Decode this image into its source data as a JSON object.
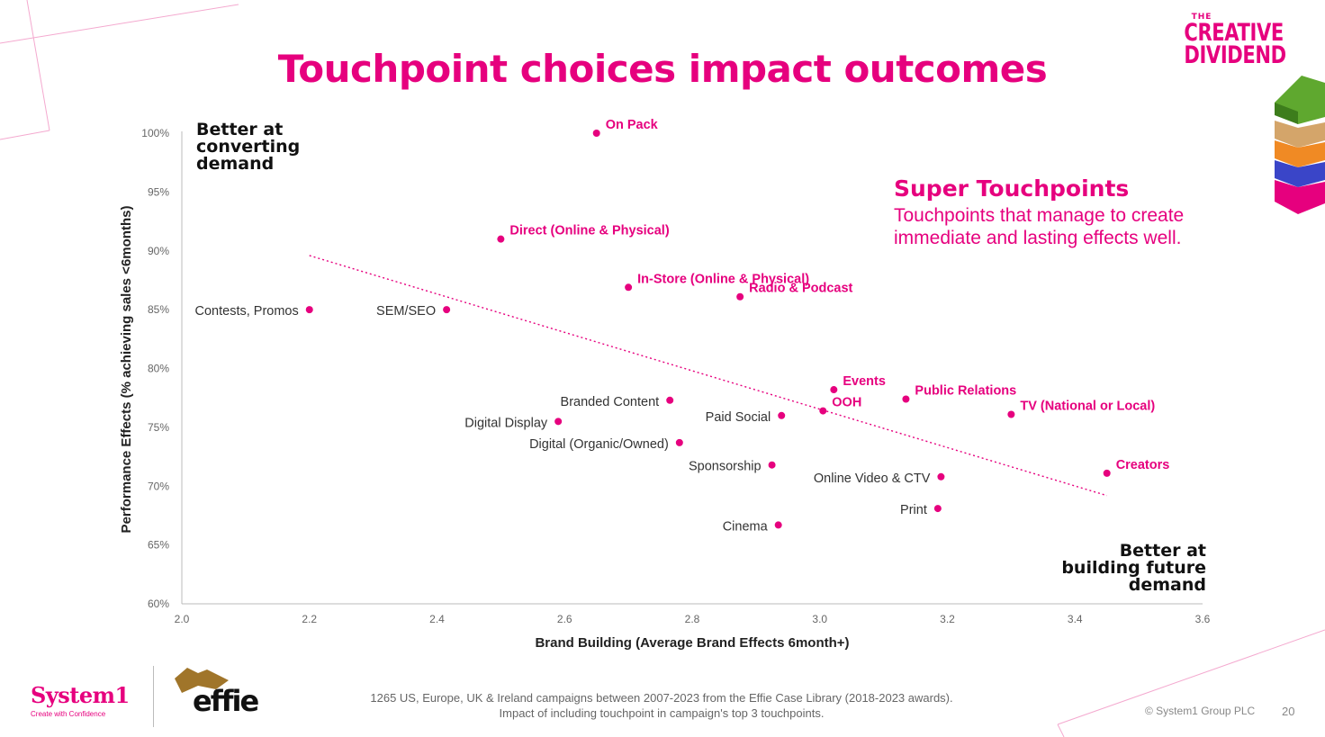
{
  "title": "Touchpoint choices impact outcomes",
  "brand": {
    "the": "THE",
    "line1": "CREATIVE",
    "line2": "DIVIDEND"
  },
  "super_touchpoints": {
    "title": "Super Touchpoints",
    "description": "Touchpoints that manage to create immediate and lasting effects well."
  },
  "corner_top_left": {
    "line1": "Better at",
    "line2": "converting",
    "line3": "demand"
  },
  "corner_bottom_right": {
    "line1": "Better at",
    "line2": "building future",
    "line3": "demand"
  },
  "footer": {
    "system1": "System1",
    "tagline": "Create with Confidence",
    "effie": "effie",
    "source_line1": "1265 US, Europe, UK & Ireland campaigns between 2007-2023 from the Effie Case Library (2018-2023 awards).",
    "source_line2": "Impact of including touchpoint in campaign's top 3 touchpoints.",
    "copyright": "© System1 Group PLC",
    "page": "20"
  },
  "colors": {
    "accent": "#e6007e",
    "text": "#222222"
  },
  "chart_data": {
    "type": "scatter",
    "xlabel": "Brand Building (Average Brand Effects 6month+)",
    "ylabel": "Performance Effects (% achieving sales <6months)",
    "xlim": [
      2.0,
      3.6
    ],
    "ylim": [
      60,
      100
    ],
    "xticks": [
      "2.0",
      "2.2",
      "2.4",
      "2.6",
      "2.8",
      "3.0",
      "3.2",
      "3.4",
      "3.6"
    ],
    "yticks": [
      "60%",
      "65%",
      "70%",
      "75%",
      "80%",
      "85%",
      "90%",
      "95%",
      "100%"
    ],
    "trendline": {
      "x": [
        2.2,
        3.45
      ],
      "y": [
        89.6,
        69.2
      ]
    },
    "points": [
      {
        "label": "On Pack",
        "x": 2.65,
        "y": 100,
        "highlight": true,
        "pos": "right"
      },
      {
        "label": "Direct (Online & Physical)",
        "x": 2.5,
        "y": 91,
        "highlight": true,
        "pos": "right"
      },
      {
        "label": "In-Store (Online & Physical)",
        "x": 2.7,
        "y": 86.9,
        "highlight": true,
        "pos": "right"
      },
      {
        "label": "Radio & Podcast",
        "x": 2.875,
        "y": 86.1,
        "highlight": true,
        "pos": "right"
      },
      {
        "label": "Contests, Promos",
        "x": 2.2,
        "y": 85,
        "highlight": false,
        "pos": "left"
      },
      {
        "label": "SEM/SEO",
        "x": 2.415,
        "y": 85,
        "highlight": false,
        "pos": "left"
      },
      {
        "label": "Events",
        "x": 3.022,
        "y": 78.2,
        "highlight": true,
        "pos": "right"
      },
      {
        "label": "Public Relations",
        "x": 3.135,
        "y": 77.4,
        "highlight": true,
        "pos": "right"
      },
      {
        "label": "Branded Content",
        "x": 2.765,
        "y": 77.3,
        "highlight": false,
        "pos": "left"
      },
      {
        "label": "OOH",
        "x": 3.005,
        "y": 76.4,
        "highlight": true,
        "pos": "right"
      },
      {
        "label": "TV (National or Local)",
        "x": 3.3,
        "y": 76.1,
        "highlight": true,
        "pos": "right"
      },
      {
        "label": "Paid Social",
        "x": 2.94,
        "y": 76.0,
        "highlight": false,
        "pos": "left"
      },
      {
        "label": "Digital Display",
        "x": 2.59,
        "y": 75.5,
        "highlight": false,
        "pos": "left"
      },
      {
        "label": "Digital (Organic/Owned)",
        "x": 2.78,
        "y": 73.7,
        "highlight": false,
        "pos": "left"
      },
      {
        "label": "Sponsorship",
        "x": 2.925,
        "y": 71.8,
        "highlight": false,
        "pos": "left"
      },
      {
        "label": "Creators",
        "x": 3.45,
        "y": 71.1,
        "highlight": true,
        "pos": "right"
      },
      {
        "label": "Online Video & CTV",
        "x": 3.19,
        "y": 70.8,
        "highlight": false,
        "pos": "left"
      },
      {
        "label": "Print",
        "x": 3.185,
        "y": 68.1,
        "highlight": false,
        "pos": "left"
      },
      {
        "label": "Cinema",
        "x": 2.935,
        "y": 66.7,
        "highlight": false,
        "pos": "left"
      }
    ]
  }
}
